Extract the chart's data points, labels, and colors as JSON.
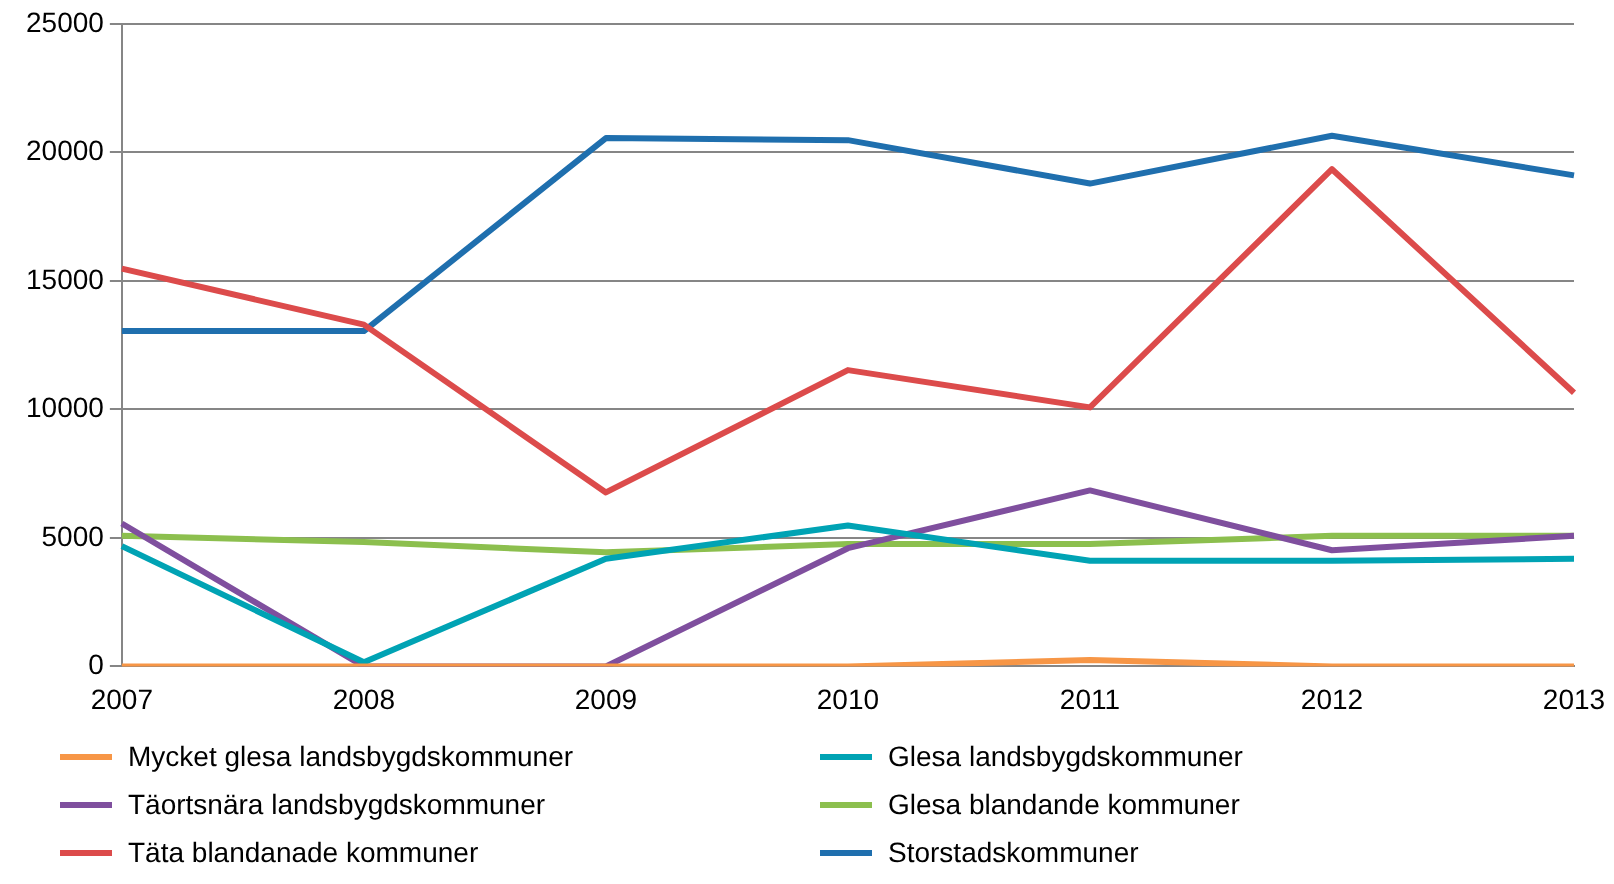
{
  "chart_data": {
    "type": "line",
    "categories": [
      "2007",
      "2008",
      "2009",
      "2010",
      "2011",
      "2012",
      "2013"
    ],
    "ylim": [
      0,
      25000
    ],
    "yticks": [
      0,
      5000,
      10000,
      15000,
      20000,
      25000
    ],
    "grid": "y",
    "legend": "bottom",
    "marker": "none",
    "line_style": "solid",
    "series": [
      {
        "name": "Mycket glesa landsbygdskommuner",
        "color": "#f79646",
        "values": [
          0,
          0,
          0,
          0,
          250,
          0,
          0
        ]
      },
      {
        "name": "Glesa landsbygdskommuner",
        "color": "#00a3b4",
        "values": [
          4680,
          160,
          4190,
          5480,
          4110,
          4110,
          4190
        ]
      },
      {
        "name": "Täortsnära landsbygdskommuner",
        "color": "#7f4f9e",
        "values": [
          5560,
          0,
          0,
          4600,
          6850,
          4520,
          5080
        ]
      },
      {
        "name": "Glesa blandande kommuner",
        "color": "#8cbf4e",
        "values": [
          5080,
          4840,
          4440,
          4760,
          4760,
          5080,
          5080
        ]
      },
      {
        "name": "Täta blandanade kommuner",
        "color": "#dc4b4b",
        "values": [
          15480,
          13300,
          6770,
          11530,
          10080,
          19350,
          10650
        ]
      },
      {
        "name": "Storstadskommuner",
        "color": "#1f6fae",
        "values": [
          13050,
          13050,
          20560,
          20480,
          18790,
          20650,
          19110
        ]
      }
    ]
  }
}
